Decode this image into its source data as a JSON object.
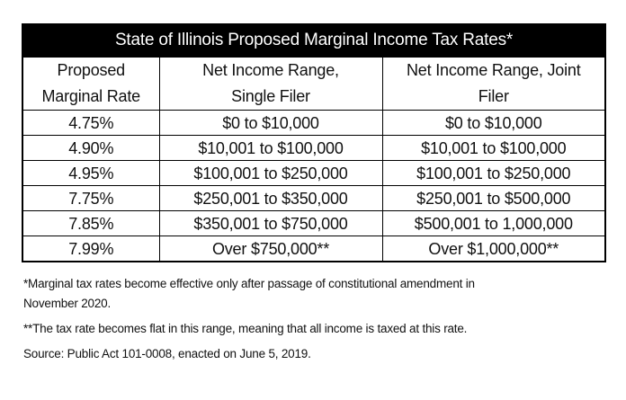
{
  "table": {
    "title": "State of Illinois Proposed Marginal Income Tax Rates*",
    "headers": [
      [
        "Proposed",
        "Net Income Range,",
        "Net Income Range, Joint"
      ],
      [
        "Marginal Rate",
        "Single Filer",
        "Filer"
      ]
    ],
    "rows": [
      [
        "4.75%",
        "$0 to $10,000",
        "$0 to $10,000"
      ],
      [
        "4.90%",
        "$10,001 to $100,000",
        "$10,001 to $100,000"
      ],
      [
        "4.95%",
        "$100,001 to $250,000",
        "$100,001 to $250,000"
      ],
      [
        "7.75%",
        "$250,001 to $350,000",
        "$250,001 to $500,000"
      ],
      [
        "7.85%",
        "$350,001 to $750,000",
        "$500,001 to 1,000,000"
      ],
      [
        "7.99%",
        "Over $750,000**",
        "Over $1,000,000**"
      ]
    ]
  },
  "notes": {
    "footnote1_line1": "*Marginal tax rates become effective only after passage of constitutional amendment in",
    "footnote1_line2": "November 2020.",
    "footnote2": "**The tax rate becomes flat in this range, meaning that all income is taxed at this rate.",
    "source": "Source: Public Act 101-0008, enacted on June 5, 2019."
  }
}
